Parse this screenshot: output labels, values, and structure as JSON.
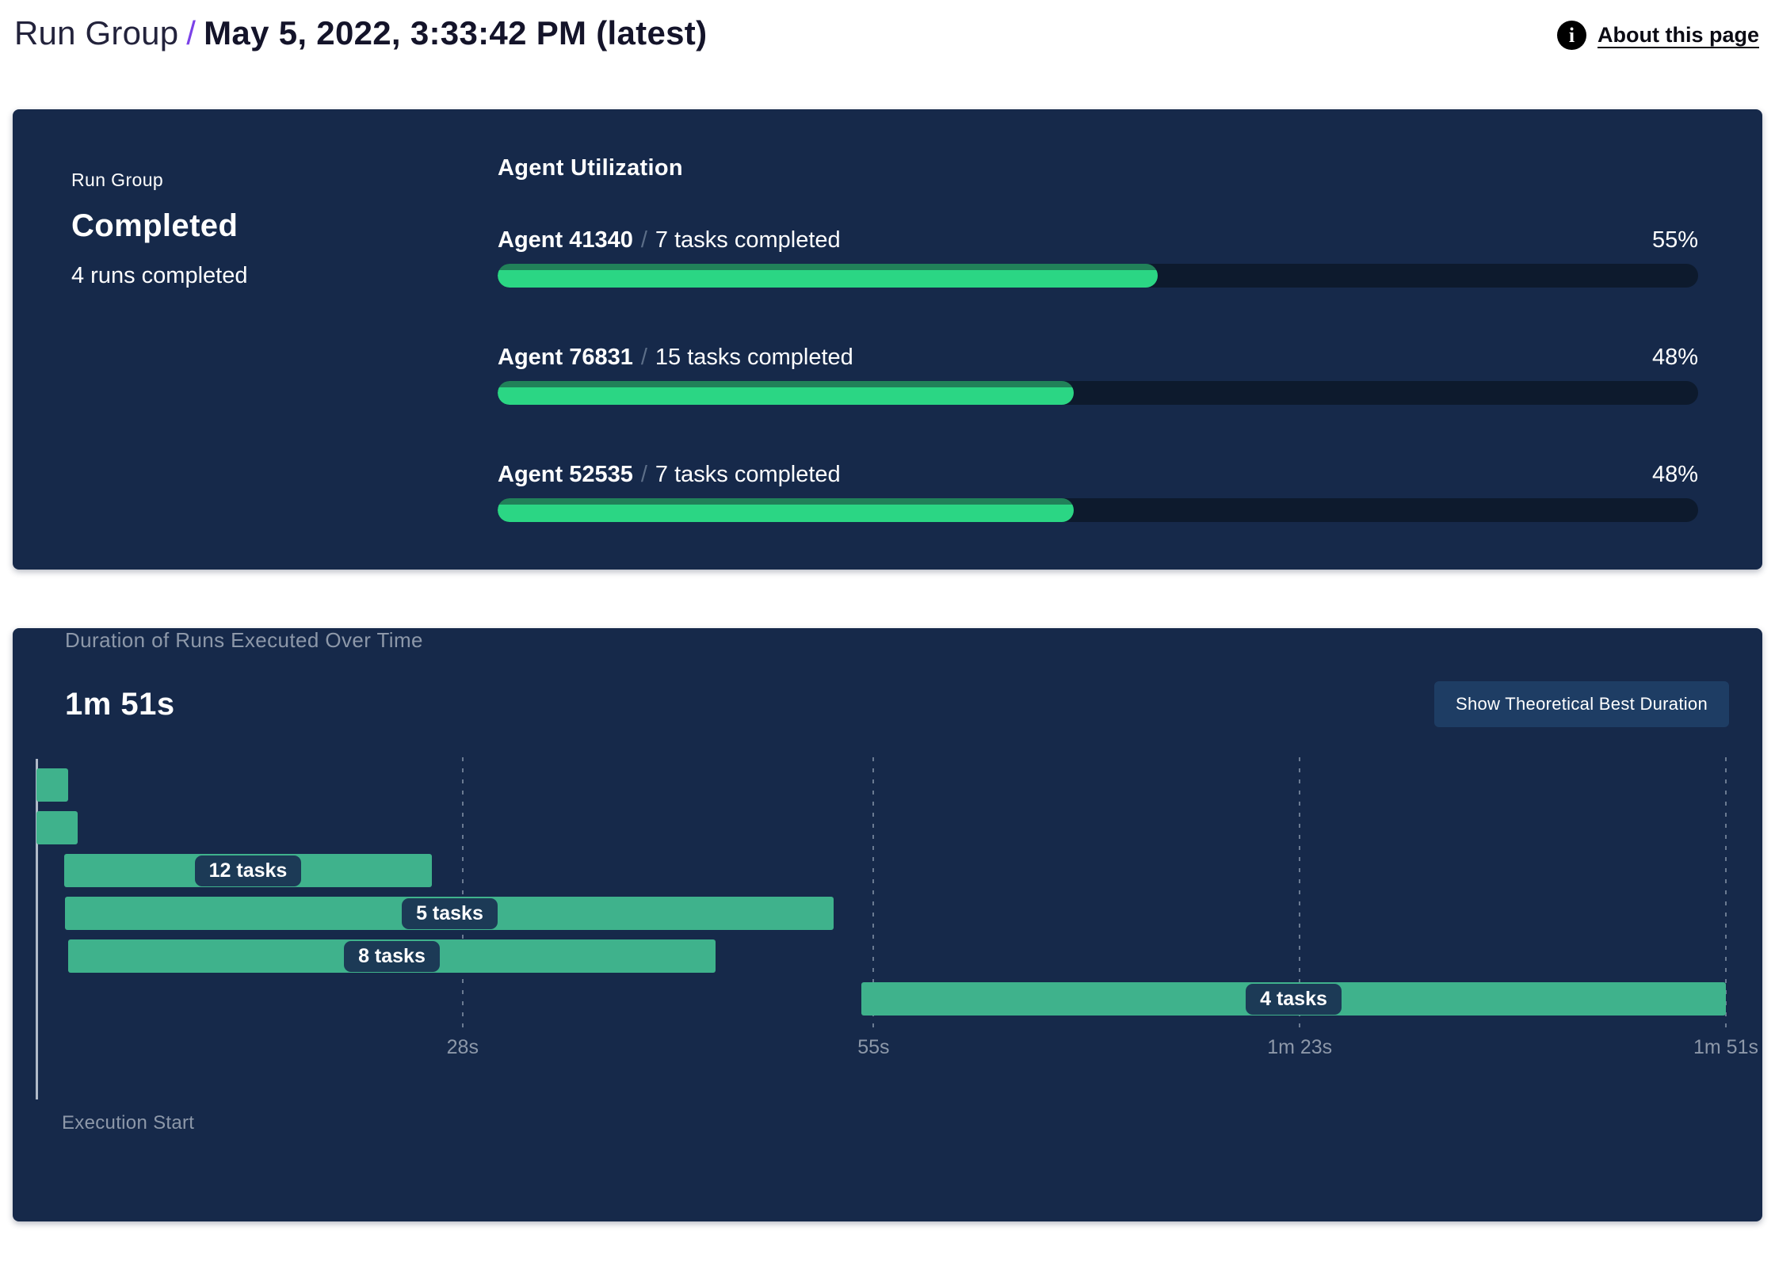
{
  "header": {
    "breadcrumb": "Run Group",
    "separator": "/",
    "title": "May 5, 2022, 3:33:42 PM (latest)",
    "about_label": "About this page",
    "info_glyph": "i",
    "info_icon": "info-icon"
  },
  "colors": {
    "panel_navy": "#16294a",
    "progress_track": "#0d1a2d",
    "progress_green": "#2bd684",
    "progress_green_shade": "#218159",
    "gantt_green": "#3fb28c",
    "pill_navy": "#1c3a56",
    "button_navy": "#1e3d64",
    "breadcrumb_purple": "#7b42e8",
    "muted_gray_text": "#8d98a9"
  },
  "status_card": {
    "label": "Run Group",
    "status": "Completed",
    "runs_completed": "4 runs completed"
  },
  "agent_utilization": {
    "title": "Agent Utilization",
    "agents": [
      {
        "name": "Agent 41340",
        "tasks": "7 tasks completed",
        "percent": 55,
        "percent_label": "55%"
      },
      {
        "name": "Agent 76831",
        "tasks": "15 tasks completed",
        "percent": 48,
        "percent_label": "48%"
      },
      {
        "name": "Agent 52535",
        "tasks": "7 tasks completed",
        "percent": 48,
        "percent_label": "48%"
      }
    ]
  },
  "duration_chart": {
    "title": "Duration of Runs Executed Over Time",
    "total_duration": "1m 51s",
    "button_label": "Show Theoretical Best Duration",
    "axis_label": "Execution Start"
  },
  "chart_data": {
    "type": "gantt-bar",
    "title": "Duration of Runs Executed Over Time",
    "total_duration_s": 111,
    "x_ticks": [
      {
        "label": "28s",
        "seconds": 28
      },
      {
        "label": "55s",
        "seconds": 55
      },
      {
        "label": "1m 23s",
        "seconds": 83
      },
      {
        "label": "1m 51s",
        "seconds": 111
      }
    ],
    "runs": [
      {
        "label": "",
        "start_s": 0,
        "end_s": 2.1
      },
      {
        "label": "",
        "start_s": 0,
        "end_s": 2.7
      },
      {
        "label": "12 tasks",
        "start_s": 1.8,
        "end_s": 26
      },
      {
        "label": "5 tasks",
        "start_s": 1.9,
        "end_s": 52.4
      },
      {
        "label": "8 tasks",
        "start_s": 2.1,
        "end_s": 44.6
      },
      {
        "label": "4 tasks",
        "start_s": 54.2,
        "end_s": 111
      }
    ]
  }
}
